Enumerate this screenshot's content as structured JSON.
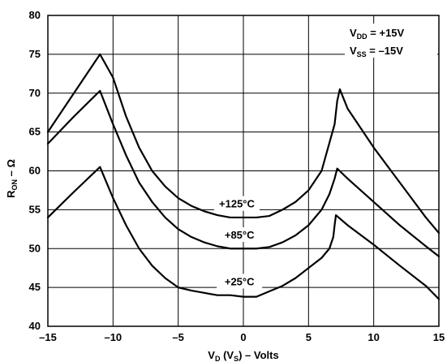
{
  "chart_data": {
    "type": "line",
    "title": "",
    "xlabel": {
      "main": "V",
      "sub1": "D",
      "mid": " (V",
      "sub2": "S",
      "tail": ") – Volts"
    },
    "ylabel": {
      "main": "R",
      "sub": "ON",
      "tail": " – Ω"
    },
    "xlim": [
      -15,
      15
    ],
    "ylim": [
      40,
      80
    ],
    "x_ticks": [
      -15,
      -10,
      -5,
      0,
      5,
      10,
      15
    ],
    "y_ticks": [
      40,
      45,
      50,
      55,
      60,
      65,
      70,
      75,
      80
    ],
    "x_tick_labels": [
      "–15",
      "–10",
      "–5",
      "0",
      "5",
      "10",
      "15"
    ],
    "y_tick_labels": [
      "40",
      "45",
      "50",
      "55",
      "60",
      "65",
      "70",
      "75",
      "80"
    ],
    "grid": true,
    "annotations": {
      "vdd_main": "V",
      "vdd_sub": "DD",
      "vdd_value": " = +15V",
      "vss_main": "V",
      "vss_sub": "SS",
      "vss_value": " = –15V"
    },
    "series": [
      {
        "name": "+125°C",
        "x": [
          -15,
          -13,
          -11,
          -10,
          -9,
          -8,
          -7,
          -6,
          -5,
          -4,
          -3,
          -2,
          -1,
          0,
          1,
          2,
          3,
          4,
          5,
          6,
          7,
          7.2,
          7.4,
          8,
          10,
          12,
          14,
          15
        ],
        "y": [
          65,
          70,
          75,
          72,
          67,
          63,
          60,
          58,
          56.5,
          55.5,
          54.8,
          54.3,
          54,
          54,
          54,
          54.2,
          55,
          56,
          57.5,
          60,
          66,
          69,
          70.5,
          68,
          63,
          58.5,
          54,
          52
        ]
      },
      {
        "name": "+85°C",
        "x": [
          -15,
          -13,
          -11,
          -10,
          -9,
          -8,
          -7,
          -6,
          -5,
          -4,
          -3,
          -2,
          -1,
          0,
          1,
          2,
          3,
          4,
          5,
          6,
          6.6,
          7,
          7.2,
          8,
          10,
          12,
          14,
          15
        ],
        "y": [
          63.5,
          67,
          70.3,
          66,
          62,
          58.5,
          56,
          54,
          52.5,
          51.5,
          50.8,
          50.3,
          50,
          50,
          50,
          50.2,
          50.8,
          51.7,
          53,
          55,
          57,
          59,
          60.3,
          59,
          56,
          53,
          50.3,
          49
        ]
      },
      {
        "name": "+25°C",
        "x": [
          -15,
          -13,
          -11,
          -10,
          -9,
          -8,
          -7,
          -6,
          -5,
          -4,
          -3,
          -2,
          -1,
          0,
          1,
          2,
          3,
          4,
          5,
          6,
          6.6,
          6.9,
          7,
          7.1,
          8,
          10,
          12,
          14,
          15
        ],
        "y": [
          54,
          57.3,
          60.5,
          56.5,
          53,
          50,
          47.8,
          46.2,
          45,
          44.6,
          44.3,
          44,
          44,
          43.8,
          43.8,
          44.5,
          45.2,
          46.2,
          47.5,
          48.8,
          50,
          51.5,
          53,
          54.3,
          53,
          50.5,
          47.8,
          45.2,
          43.5
        ]
      }
    ],
    "series_labels": [
      {
        "text": "+125°C",
        "x": -0.5,
        "y": 55.8
      },
      {
        "text": "+85°C",
        "x": -0.3,
        "y": 51.8
      },
      {
        "text": "+25°C",
        "x": -0.3,
        "y": 45.8
      }
    ]
  }
}
